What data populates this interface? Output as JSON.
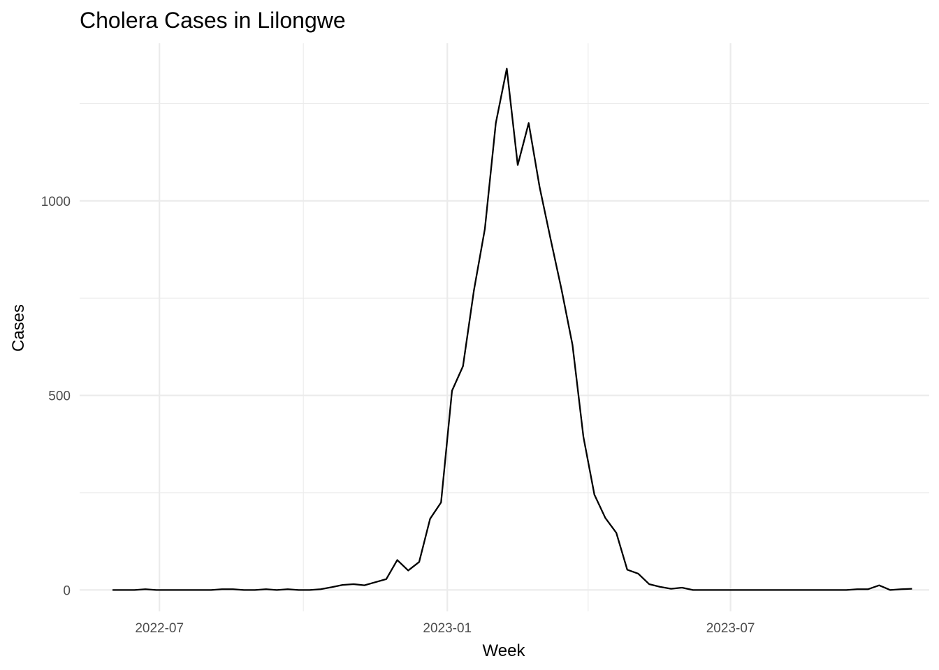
{
  "chart_data": {
    "type": "line",
    "title": "Cholera Cases in Lilongwe",
    "xlabel": "Week",
    "ylabel": "Cases",
    "x_type": "date",
    "xlim": [
      "2022-05-11",
      "2023-11-05"
    ],
    "ylim": [
      -55,
      1405
    ],
    "x_major_ticks": [
      {
        "date": "2022-07-01",
        "label": "2022-07"
      },
      {
        "date": "2023-01-01",
        "label": "2023-01"
      },
      {
        "date": "2023-07-01",
        "label": "2023-07"
      }
    ],
    "x_minor_ticks": [
      "2022-10-01",
      "2023-04-01"
    ],
    "y_major_ticks": [
      {
        "value": 0,
        "label": "0"
      },
      {
        "value": 500,
        "label": "500"
      },
      {
        "value": 1000,
        "label": "1000"
      }
    ],
    "y_minor_ticks": [
      250,
      750,
      1250
    ],
    "grid": true,
    "line_color": "#000000",
    "grid_color": "#ebebeb",
    "series": [
      {
        "x": [
          "2022-06-01",
          "2022-06-08",
          "2022-06-15",
          "2022-06-22",
          "2022-06-29",
          "2022-07-06",
          "2022-07-13",
          "2022-07-20",
          "2022-07-27",
          "2022-08-03",
          "2022-08-10",
          "2022-08-17",
          "2022-08-24",
          "2022-08-31",
          "2022-09-07",
          "2022-09-14",
          "2022-09-21",
          "2022-09-28",
          "2022-10-05",
          "2022-10-12",
          "2022-10-19",
          "2022-10-26",
          "2022-11-02",
          "2022-11-09",
          "2022-11-16",
          "2022-11-23",
          "2022-11-30",
          "2022-12-07",
          "2022-12-14",
          "2022-12-21",
          "2022-12-28",
          "2023-01-04",
          "2023-01-11",
          "2023-01-18",
          "2023-01-25",
          "2023-02-01",
          "2023-02-08",
          "2023-02-15",
          "2023-02-22",
          "2023-03-01",
          "2023-03-08",
          "2023-03-15",
          "2023-03-22",
          "2023-03-29",
          "2023-04-05",
          "2023-04-12",
          "2023-04-19",
          "2023-04-26",
          "2023-05-03",
          "2023-05-10",
          "2023-05-17",
          "2023-05-24",
          "2023-05-31",
          "2023-06-07",
          "2023-06-14",
          "2023-06-21",
          "2023-06-28",
          "2023-07-05",
          "2023-07-12",
          "2023-07-19",
          "2023-07-26",
          "2023-08-02",
          "2023-08-09",
          "2023-08-16",
          "2023-08-23",
          "2023-08-30",
          "2023-09-06",
          "2023-09-13",
          "2023-09-20",
          "2023-09-27",
          "2023-10-04",
          "2023-10-11",
          "2023-10-18",
          "2023-10-25"
        ],
        "y": [
          0,
          0,
          0,
          2,
          0,
          0,
          0,
          0,
          0,
          0,
          2,
          2,
          0,
          0,
          2,
          0,
          2,
          0,
          0,
          2,
          7,
          13,
          15,
          12,
          20,
          28,
          77,
          50,
          72,
          183,
          225,
          512,
          575,
          770,
          928,
          1200,
          1340,
          1092,
          1200,
          1035,
          902,
          772,
          630,
          393,
          245,
          185,
          147,
          52,
          42,
          15,
          8,
          3,
          6,
          0,
          0,
          0,
          0,
          0,
          0,
          0,
          0,
          0,
          0,
          0,
          0,
          0,
          0,
          0,
          2,
          2,
          12,
          0,
          2,
          3
        ]
      }
    ]
  }
}
